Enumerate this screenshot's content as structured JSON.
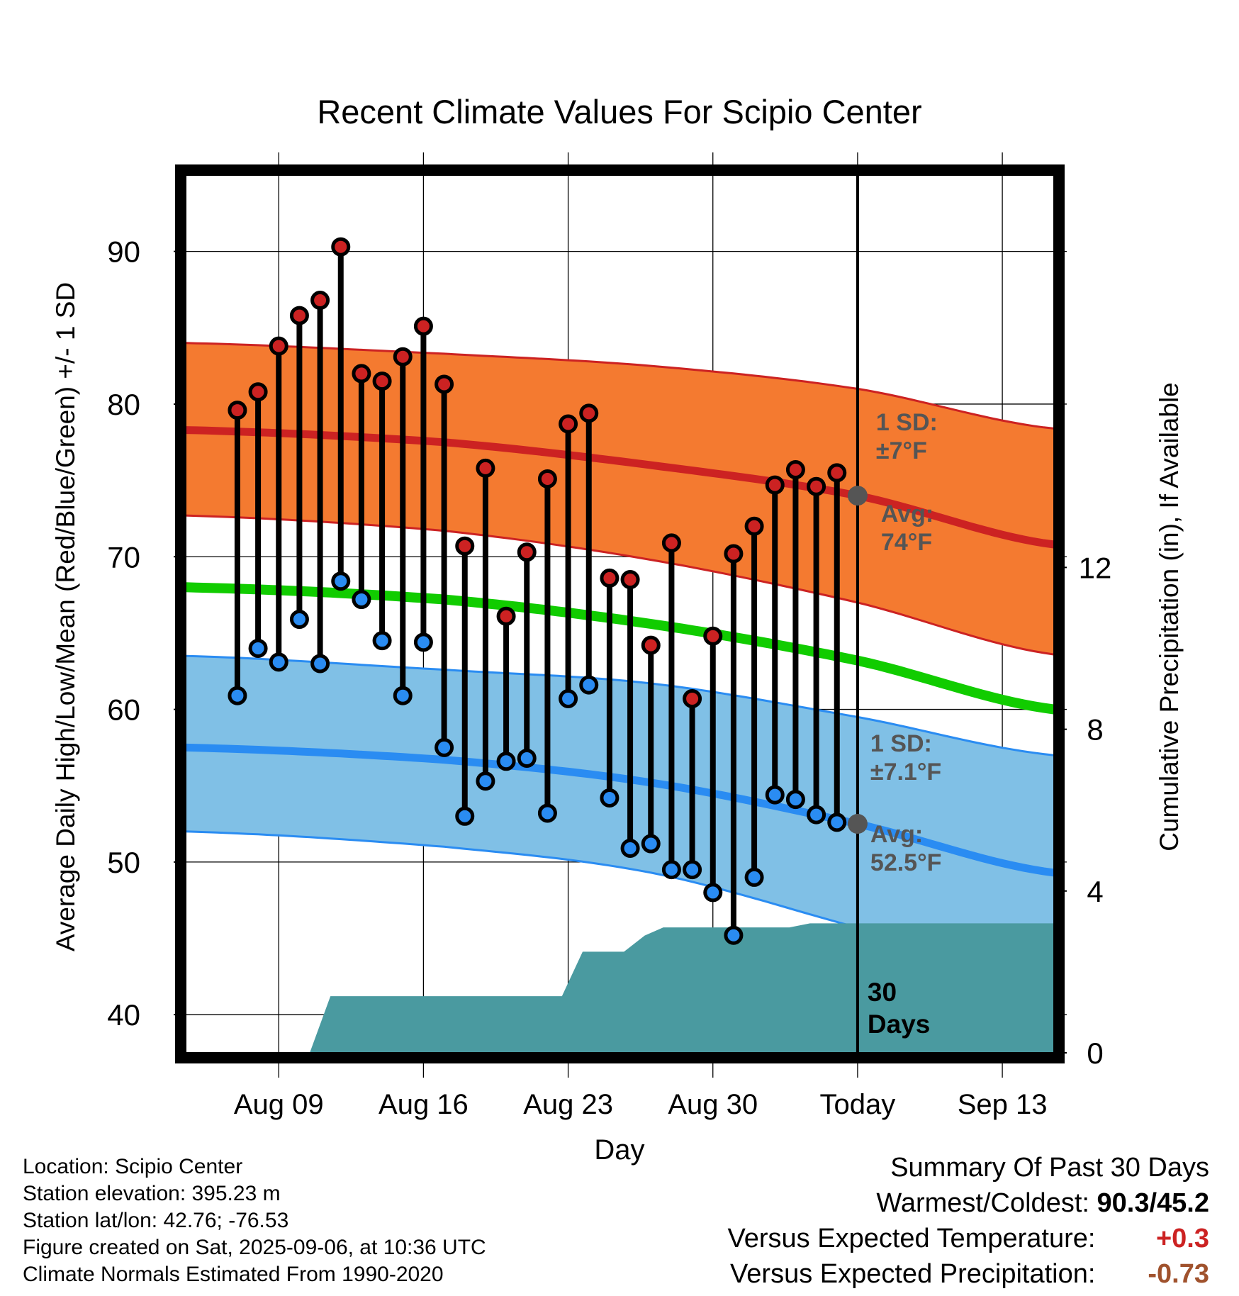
{
  "chart_data": {
    "type": "line",
    "title": "Recent Climate Values For Scipio Center",
    "xlabel": "Day",
    "ylabel": "Average Daily High/Low/Mean (Red/Blue/Green) +/- 1 SD",
    "y2label": "Cumulative Precipitation (in), If Available",
    "ylim": [
      37.5,
      95
    ],
    "y2lim": [
      0,
      21.7
    ],
    "x_range_days": [
      -32.5,
      9.5
    ],
    "x_ticks": [
      {
        "day": -28,
        "label": "Aug 09"
      },
      {
        "day": -21,
        "label": "Aug 16"
      },
      {
        "day": -14,
        "label": "Aug 23"
      },
      {
        "day": -7,
        "label": "Aug 30"
      },
      {
        "day": 0,
        "label": "Today"
      },
      {
        "day": 7,
        "label": "Sep 13"
      }
    ],
    "y_ticks": [
      40,
      50,
      60,
      70,
      80,
      90
    ],
    "y2_ticks": [
      0,
      4,
      8,
      12
    ],
    "grid": true,
    "today_marker": "30 Days",
    "normals": {
      "high_avg": {
        "day": [
          -32.5,
          -20,
          -10,
          0,
          9.5
        ],
        "value": [
          78.3,
          77.5,
          76.0,
          74.0,
          70.8
        ]
      },
      "high_upper": {
        "day": [
          -32.5,
          -20,
          -10,
          0,
          9.5
        ],
        "value": [
          84.0,
          83.3,
          82.5,
          81.0,
          78.4
        ]
      },
      "high_lower": {
        "day": [
          -32.5,
          -20,
          -10,
          0,
          9.5
        ],
        "value": [
          72.7,
          71.7,
          69.8,
          67.0,
          63.6
        ]
      },
      "low_avg": {
        "day": [
          -32.5,
          -20,
          -10,
          0,
          9.5
        ],
        "value": [
          57.5,
          56.7,
          55.2,
          52.5,
          49.3
        ]
      },
      "low_upper": {
        "day": [
          -32.5,
          -20,
          -10,
          0,
          9.5
        ],
        "value": [
          63.5,
          62.6,
          61.7,
          59.5,
          57.0
        ]
      },
      "low_lower": {
        "day": [
          -32.5,
          -20,
          -10,
          0,
          9.5
        ],
        "value": [
          52.0,
          51.0,
          49.3,
          45.7,
          42.0
        ]
      },
      "mean": {
        "day": [
          -32.5,
          -20,
          -10,
          0,
          9.5
        ],
        "value": [
          68.0,
          67.2,
          65.6,
          63.2,
          60.0
        ]
      }
    },
    "series": [
      {
        "name": "High",
        "color": "#cc2222",
        "day": [
          -30,
          -29,
          -28,
          -27,
          -26,
          -25,
          -24,
          -23,
          -22,
          -21,
          -20,
          -19,
          -18,
          -17,
          -16,
          -15,
          -14,
          -13,
          -12,
          -11,
          -10,
          -9,
          -8,
          -7,
          -6,
          -5,
          -4,
          -3,
          -2,
          -1
        ],
        "values": [
          79.6,
          80.8,
          83.8,
          85.8,
          86.8,
          90.3,
          82.0,
          81.5,
          83.1,
          85.1,
          81.3,
          70.7,
          75.8,
          66.1,
          70.3,
          75.1,
          78.7,
          79.4,
          68.6,
          68.5,
          64.2,
          70.9,
          60.7,
          64.8,
          70.2,
          72.0,
          74.7,
          75.7,
          74.6,
          75.5
        ]
      },
      {
        "name": "Low",
        "color": "#2a8cf2",
        "day": [
          -30,
          -29,
          -28,
          -27,
          -26,
          -25,
          -24,
          -23,
          -22,
          -21,
          -20,
          -19,
          -18,
          -17,
          -16,
          -15,
          -14,
          -13,
          -12,
          -11,
          -10,
          -9,
          -8,
          -7,
          -6,
          -5,
          -4,
          -3,
          -2,
          -1
        ],
        "values": [
          60.9,
          64.0,
          63.1,
          65.9,
          63.0,
          68.4,
          67.2,
          64.5,
          60.9,
          64.4,
          57.5,
          53.0,
          55.3,
          56.6,
          56.8,
          53.2,
          60.7,
          61.6,
          54.2,
          50.9,
          51.2,
          49.5,
          49.5,
          48.0,
          45.2,
          49.0,
          54.4,
          54.1,
          53.1,
          52.6
        ]
      }
    ],
    "precipitation": {
      "color": "#4a9aa0",
      "day": [
        -26.5,
        -25.5,
        -22.5,
        -21,
        -14.3,
        -13.3,
        -11.3,
        -10.3,
        -9.4,
        -3.3,
        -2.3,
        9.5
      ],
      "values": [
        0,
        1.4,
        1.4,
        1.4,
        1.4,
        2.5,
        2.5,
        2.9,
        3.1,
        3.1,
        3.2,
        3.2
      ]
    },
    "annotations": {
      "high_sd": [
        "1 SD:",
        "±7°F"
      ],
      "high_avg": [
        "Avg:",
        "74°F"
      ],
      "low_sd": [
        "1 SD:",
        "±7.1°F"
      ],
      "low_avg": [
        "Avg:",
        "52.5°F"
      ]
    }
  },
  "info": {
    "location": "Location: Scipio Center",
    "elevation": "Station elevation: 395.23 m",
    "latlon": "Station lat/lon: 42.76; -76.53",
    "created": "Figure created on Sat, 2025-09-06, at 10:36 UTC",
    "normals": "Climate Normals Estimated From 1990-2020"
  },
  "summary": {
    "title": "Summary Of Past 30 Days",
    "warm_cold_label": "Warmest/Coldest:",
    "warm_cold_value": "90.3/45.2",
    "temp_label": "Versus Expected Temperature:",
    "temp_value": "+0.3",
    "temp_color": "#cc2222",
    "precip_label": "Versus Expected Precipitation:",
    "precip_value": "-0.73",
    "precip_color": "#a0522d"
  },
  "colors": {
    "high_band": "#f47a30",
    "high_line": "#cc2222",
    "low_band": "#80c0e6",
    "low_line": "#2a8cf2",
    "mean_line": "#11cc00",
    "precip_fill": "#4a9aa0",
    "annotation_text": "#555555"
  }
}
